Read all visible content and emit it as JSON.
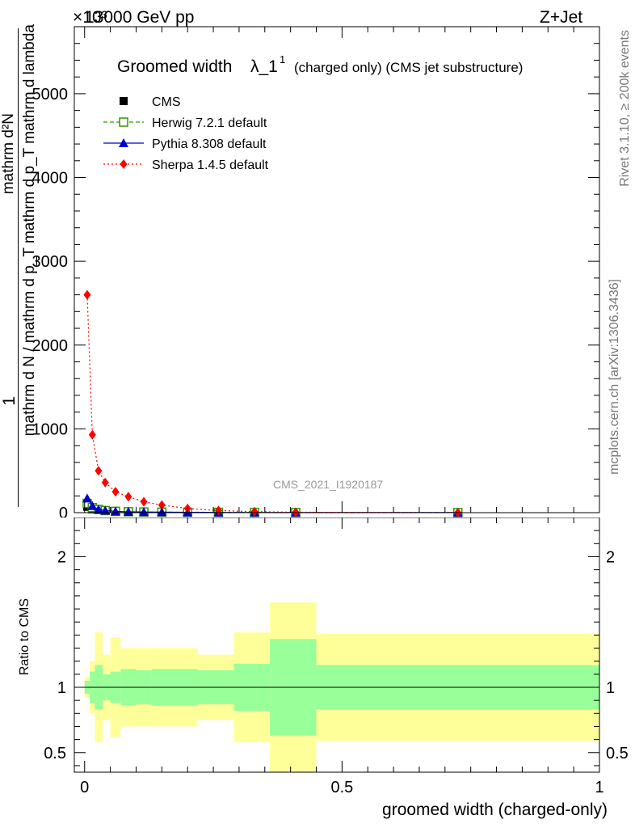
{
  "header": {
    "left": "13000 GeV pp",
    "right": "Z+Jet",
    "exponent": "×10³"
  },
  "side_labels": {
    "rivet": "Rivet 3.1.10, ≥ 200k events",
    "mcplots": "mcplots.cern.ch [arXiv:1306.3436]"
  },
  "colors": {
    "cms": "#000000",
    "herwig": "#339900",
    "pythia": "#0000cc",
    "sherpa": "#ff0000",
    "band_outer": "#ffff99",
    "band_inner": "#99ff99"
  },
  "chart_data": [
    {
      "type": "line",
      "title": "Groomed width",
      "title_symbol": "λ_1",
      "title_superscript": "1",
      "subtitle": "(charged only) (CMS jet substructure)",
      "watermark": "CMS_2021_I1920187",
      "ylabel_numerator": "1",
      "ylabel_denominator": "mathrm d N / mathrm d p_T mathrm d p_T mathrm d lambda",
      "ylabel_right": "mathrm d²N",
      "ylim": [
        0,
        5800
      ],
      "xlim": [
        -0.02,
        1.0
      ],
      "yticks": [
        {
          "value": 0,
          "label": "0"
        },
        {
          "value": 1000,
          "label": "1000"
        },
        {
          "value": 2000,
          "label": "2000"
        },
        {
          "value": 3000,
          "label": "3000"
        },
        {
          "value": 4000,
          "label": "4000"
        },
        {
          "value": 5000,
          "label": "5000"
        }
      ],
      "legend": {
        "placement": "top-left"
      },
      "series": [
        {
          "name": "CMS",
          "key": "cms",
          "marker": "square",
          "x": [
            0.005,
            0.015,
            0.027,
            0.04,
            0.06,
            0.085,
            0.115,
            0.15,
            0.2,
            0.26,
            0.33,
            0.41,
            0.725
          ],
          "y": [
            70,
            40,
            30,
            22,
            15,
            10,
            8,
            7,
            5,
            4,
            3,
            2,
            1
          ]
        },
        {
          "name": "Herwig 7.2.1 default",
          "key": "herwig",
          "marker": "open-square",
          "x": [
            0.005,
            0.015,
            0.027,
            0.04,
            0.06,
            0.085,
            0.115,
            0.15,
            0.2,
            0.26,
            0.33,
            0.41,
            0.725
          ],
          "y": [
            110,
            60,
            38,
            25,
            16,
            11,
            8,
            6,
            5,
            4,
            3,
            2,
            1
          ]
        },
        {
          "name": "Pythia 8.308 default",
          "key": "pythia",
          "marker": "triangle",
          "x": [
            0.005,
            0.015,
            0.027,
            0.04,
            0.06,
            0.085,
            0.115,
            0.15,
            0.2,
            0.26,
            0.33,
            0.41,
            0.725
          ],
          "y": [
            170,
            80,
            40,
            25,
            15,
            10,
            7,
            6,
            4,
            3,
            2,
            2,
            1
          ]
        },
        {
          "name": "Sherpa 1.4.5 default",
          "key": "sherpa",
          "marker": "diamond",
          "x": [
            0.005,
            0.015,
            0.027,
            0.04,
            0.06,
            0.085,
            0.115,
            0.15,
            0.2,
            0.26,
            0.33,
            0.41,
            0.725
          ],
          "y": [
            2600,
            930,
            500,
            360,
            250,
            190,
            130,
            90,
            50,
            25,
            12,
            5,
            1
          ]
        }
      ]
    },
    {
      "type": "area",
      "ylabel": "Ratio to CMS",
      "xlabel": "groomed width (charged-only)",
      "ylim": [
        0.35,
        2.3
      ],
      "xlim": [
        -0.02,
        1.0
      ],
      "yticks": [
        {
          "value": 0.5,
          "label": "0.5"
        },
        {
          "value": 1,
          "label": "1"
        },
        {
          "value": 2,
          "label": "2"
        }
      ],
      "xticks": [
        {
          "value": 0,
          "label": "0"
        },
        {
          "value": 0.5,
          "label": "0.5"
        },
        {
          "value": 1,
          "label": "1"
        }
      ],
      "reference_line": 1,
      "bins": [
        {
          "x0": 0.0,
          "x1": 0.01,
          "inner_lo": 0.95,
          "inner_hi": 1.05,
          "outer_lo": 0.92,
          "outer_hi": 1.08
        },
        {
          "x0": 0.01,
          "x1": 0.02,
          "inner_lo": 0.88,
          "inner_hi": 1.12,
          "outer_lo": 0.8,
          "outer_hi": 1.2
        },
        {
          "x0": 0.02,
          "x1": 0.035,
          "inner_lo": 0.83,
          "inner_hi": 1.17,
          "outer_lo": 0.58,
          "outer_hi": 1.42
        },
        {
          "x0": 0.035,
          "x1": 0.05,
          "inner_lo": 0.9,
          "inner_hi": 1.1,
          "outer_lo": 0.75,
          "outer_hi": 1.25
        },
        {
          "x0": 0.05,
          "x1": 0.07,
          "inner_lo": 0.88,
          "inner_hi": 1.12,
          "outer_lo": 0.62,
          "outer_hi": 1.38
        },
        {
          "x0": 0.07,
          "x1": 0.1,
          "inner_lo": 0.86,
          "inner_hi": 1.14,
          "outer_lo": 0.7,
          "outer_hi": 1.3
        },
        {
          "x0": 0.1,
          "x1": 0.13,
          "inner_lo": 0.87,
          "inner_hi": 1.13,
          "outer_lo": 0.7,
          "outer_hi": 1.3
        },
        {
          "x0": 0.13,
          "x1": 0.22,
          "inner_lo": 0.86,
          "inner_hi": 1.14,
          "outer_lo": 0.7,
          "outer_hi": 1.3
        },
        {
          "x0": 0.22,
          "x1": 0.29,
          "inner_lo": 0.87,
          "inner_hi": 1.13,
          "outer_lo": 0.75,
          "outer_hi": 1.25
        },
        {
          "x0": 0.29,
          "x1": 0.36,
          "inner_lo": 0.82,
          "inner_hi": 1.18,
          "outer_lo": 0.58,
          "outer_hi": 1.42
        },
        {
          "x0": 0.36,
          "x1": 0.45,
          "inner_lo": 0.63,
          "inner_hi": 1.37,
          "outer_lo": 0.35,
          "outer_hi": 1.65
        },
        {
          "x0": 0.45,
          "x1": 1.0,
          "inner_lo": 0.83,
          "inner_hi": 1.17,
          "outer_lo": 0.59,
          "outer_hi": 1.41
        }
      ]
    }
  ]
}
